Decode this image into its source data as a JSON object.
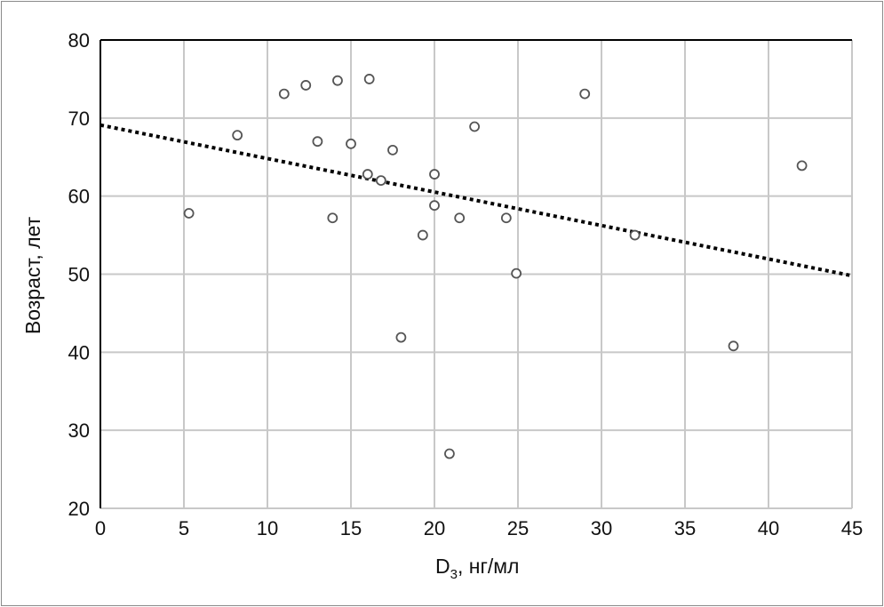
{
  "chart_data": {
    "type": "scatter",
    "title": "",
    "xlabel": "D",
    "xlabel_sub": "3",
    "xlabel_rest": ", нг/мл",
    "ylabel": "Возраст, лет",
    "xlim": [
      0,
      45
    ],
    "ylim": [
      20,
      80
    ],
    "xticks": [
      "0",
      "5",
      "10",
      "15",
      "20",
      "25",
      "30",
      "35",
      "40",
      "45"
    ],
    "yticks": [
      "20",
      "30",
      "40",
      "50",
      "60",
      "70",
      "80"
    ],
    "grid": true,
    "points": [
      [
        5.3,
        57.8
      ],
      [
        8.2,
        67.8
      ],
      [
        11.0,
        73.1
      ],
      [
        12.3,
        74.2
      ],
      [
        14.2,
        74.8
      ],
      [
        16.1,
        75.0
      ],
      [
        13.0,
        67.0
      ],
      [
        15.0,
        66.7
      ],
      [
        17.5,
        65.9
      ],
      [
        13.9,
        57.2
      ],
      [
        16.0,
        62.8
      ],
      [
        16.8,
        62.0
      ],
      [
        20.0,
        62.8
      ],
      [
        20.0,
        58.8
      ],
      [
        19.3,
        55.0
      ],
      [
        21.5,
        57.2
      ],
      [
        24.3,
        57.2
      ],
      [
        24.9,
        50.1
      ],
      [
        22.4,
        68.9
      ],
      [
        18.0,
        41.9
      ],
      [
        20.9,
        27.0
      ],
      [
        29.0,
        73.1
      ],
      [
        32.0,
        55.0
      ],
      [
        37.9,
        40.8
      ],
      [
        42.0,
        63.9
      ]
    ],
    "trendline": {
      "type": "linear",
      "style": "dotted",
      "points": [
        [
          0,
          69.1
        ],
        [
          45,
          49.8
        ]
      ]
    },
    "colors": {
      "grid": "#c8c8c8",
      "marker": "#555555",
      "trend": "#000000"
    }
  }
}
